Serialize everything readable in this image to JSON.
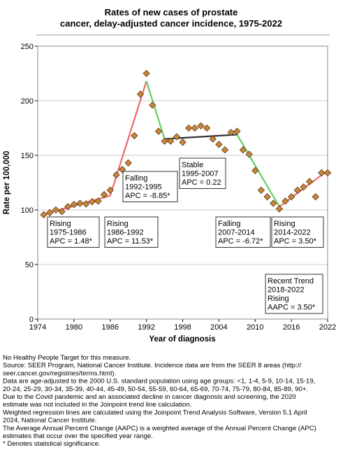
{
  "chart_data": {
    "type": "scatter",
    "title": [
      "Rates of new cases of prostate",
      "cancer, delay-adjusted cancer incidence, 1975-2022"
    ],
    "x_label": "Year of diagnosis",
    "y_label": "Rate per 100,000",
    "xlim": [
      1974,
      2022
    ],
    "xticks": [
      1974,
      1980,
      1986,
      1992,
      1998,
      2004,
      2010,
      2016,
      2022
    ],
    "ylim": [
      0,
      250
    ],
    "yticks": [
      0,
      50,
      100,
      150,
      200,
      250
    ],
    "grid": true,
    "marker_color": "#c8873a",
    "x": [
      1975,
      1976,
      1977,
      1978,
      1979,
      1980,
      1981,
      1982,
      1983,
      1984,
      1985,
      1986,
      1987,
      1988,
      1989,
      1990,
      1991,
      1992,
      1993,
      1994,
      1995,
      1996,
      1997,
      1998,
      1999,
      2000,
      2001,
      2002,
      2003,
      2004,
      2005,
      2006,
      2007,
      2008,
      2009,
      2010,
      2011,
      2012,
      2013,
      2014,
      2015,
      2016,
      2017,
      2018,
      2019,
      2020,
      2021,
      2022
    ],
    "values": [
      95.5,
      97.5,
      100,
      98.5,
      103,
      105,
      106,
      105.5,
      107.5,
      108,
      114,
      118,
      132,
      137,
      143,
      168,
      206,
      225,
      196,
      172,
      163,
      163,
      167,
      162,
      175,
      175,
      177,
      175,
      165,
      160,
      155,
      171,
      172,
      155,
      151,
      136,
      118,
      112,
      106,
      101,
      108,
      112,
      118,
      121,
      126,
      112,
      134,
      134
    ],
    "trend_segments": [
      {
        "x": [
          1975,
          1986
        ],
        "values": [
          96,
          113
        ],
        "color": "#f0686a"
      },
      {
        "x": [
          1986,
          1992
        ],
        "values": [
          113,
          218
        ],
        "color": "#f0686a"
      },
      {
        "x": [
          1992,
          1995
        ],
        "values": [
          218,
          165
        ],
        "color": "#66cc66"
      },
      {
        "x": [
          1995,
          2007
        ],
        "values": [
          165,
          169
        ],
        "color": "#333333"
      },
      {
        "x": [
          2007,
          2014
        ],
        "values": [
          169,
          103
        ],
        "color": "#66cc66"
      },
      {
        "x": [
          2014,
          2022
        ],
        "values": [
          103,
          136
        ],
        "color": "#f0686a"
      }
    ],
    "annotations": [
      {
        "lines": [
          "Rising",
          "1975-1986",
          "APC =  1.48*"
        ]
      },
      {
        "lines": [
          "Rising",
          "1986-1992",
          "APC = 11.53*"
        ]
      },
      {
        "lines": [
          "Falling",
          "1992-1995",
          "APC = -8.85*"
        ]
      },
      {
        "lines": [
          "Stable",
          "1995-2007",
          "APC =  0.22"
        ]
      },
      {
        "lines": [
          "Falling",
          "2007-2014",
          "APC = -6.72*"
        ]
      },
      {
        "lines": [
          "Rising",
          "2014-2022",
          "APC =  3.50*"
        ]
      },
      {
        "lines": [
          "Recent Trend",
          "2018-2022",
          "Rising",
          "AAPC =  3.50*"
        ]
      }
    ]
  },
  "footnotes": [
    "No Healthy People Target for this measure.",
    "Source: SEER Program, National Cancer Institute. Incidence data are from the SEER 8 areas (http://",
    "seer.cancer.gov/registries/terms.html).",
    "Data are age-adjusted to the 2000 U.S. standard population using age groups: <1, 1-4, 5-9, 10-14, 15-19,",
    "20-24, 25-29, 30-34, 35-39, 40-44, 45-49, 50-54, 55-59, 60-64, 65-69, 70-74, 75-79, 80-84, 85-89, 90+.",
    "Due to the Covid pandemic and an associated decline in cancer diagnosis and screening, the 2020",
    "estimate was not included in the Joinpoint trend line calculation.",
    "Weighted regression lines are calculated using the Joinpoint Trend Analysis Software, Version 5.1 April",
    "2024, National Cancer Institute.",
    "The Average Annual Percent Change (AAPC) is a weighted average of the Annual Percent Change (APC)",
    "estimates that occur over the specified year range.",
    "* Denotes statistical significance."
  ]
}
